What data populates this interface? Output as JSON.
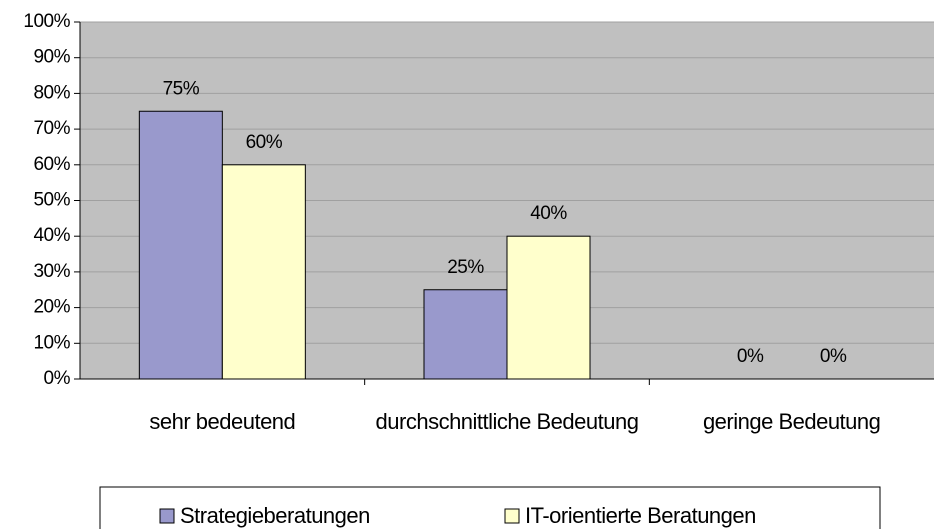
{
  "chart_data": {
    "type": "bar",
    "categories": [
      "sehr bedeutend",
      "durchschnittliche Bedeutung",
      "geringe Bedeutung"
    ],
    "series": [
      {
        "name": "Strategieberatungen",
        "color": "#9999cc",
        "values": [
          75,
          25,
          0
        ],
        "value_labels": [
          "75%",
          "25%",
          "0%"
        ]
      },
      {
        "name": "IT-orientierte Beratungen",
        "color": "#ffffcc",
        "values": [
          60,
          40,
          0
        ],
        "value_labels": [
          "60%",
          "40%",
          "0%"
        ]
      }
    ],
    "ylim": [
      0,
      100
    ],
    "yticks": [
      {
        "value": 0,
        "label": "0%"
      },
      {
        "value": 10,
        "label": "10%"
      },
      {
        "value": 20,
        "label": "20%"
      },
      {
        "value": 30,
        "label": "30%"
      },
      {
        "value": 40,
        "label": "40%"
      },
      {
        "value": 50,
        "label": "50%"
      },
      {
        "value": 60,
        "label": "60%"
      },
      {
        "value": 70,
        "label": "70%"
      },
      {
        "value": 80,
        "label": "80%"
      },
      {
        "value": 90,
        "label": "90%"
      },
      {
        "value": 100,
        "label": "100%"
      }
    ],
    "grid": true,
    "legend": "bottom",
    "background": "#c0c0c0"
  }
}
